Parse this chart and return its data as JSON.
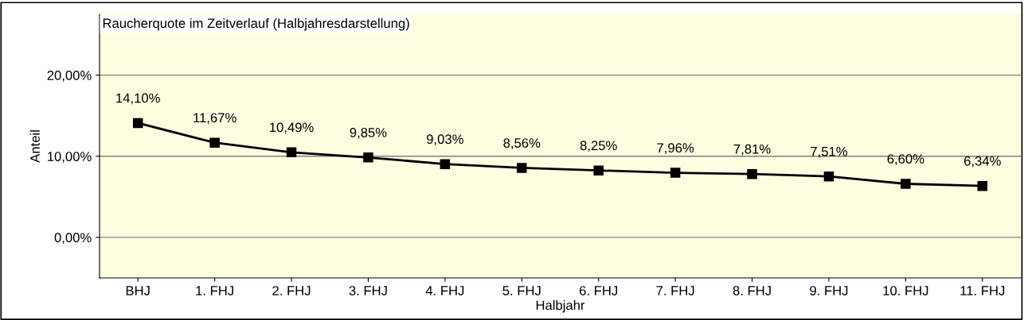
{
  "chart_data": {
    "type": "line",
    "title": "Raucherquote im Zeitverlauf (Halbjahresdarstellung)",
    "xlabel": "Halbjahr",
    "ylabel": "Anteil",
    "categories": [
      "BHJ",
      "1. FHJ",
      "2. FHJ",
      "3. FHJ",
      "4. FHJ",
      "5. FHJ",
      "6. FHJ",
      "7. FHJ",
      "8. FHJ",
      "9. FHJ",
      "10. FHJ",
      "11. FHJ"
    ],
    "series": [
      {
        "color": "#000000",
        "values": [
          14.1,
          11.67,
          10.49,
          9.85,
          9.03,
          8.56,
          8.25,
          7.96,
          7.81,
          7.51,
          6.6,
          6.34
        ],
        "value_labels": [
          "14,10%",
          "11,67%",
          "10,49%",
          "9,85%",
          "9,03%",
          "8,56%",
          "8,25%",
          "7,96%",
          "7,81%",
          "7,51%",
          "6,60%",
          "6,34%"
        ]
      }
    ],
    "ylim": [
      -5,
      27.5
    ],
    "yticks": [
      {
        "value": 0,
        "label": "0,00%"
      },
      {
        "value": 10,
        "label": "10,00%"
      },
      {
        "value": 20,
        "label": "20,00%"
      }
    ],
    "grid": "y",
    "marker": "square",
    "line_style": "solid",
    "legend": false
  }
}
